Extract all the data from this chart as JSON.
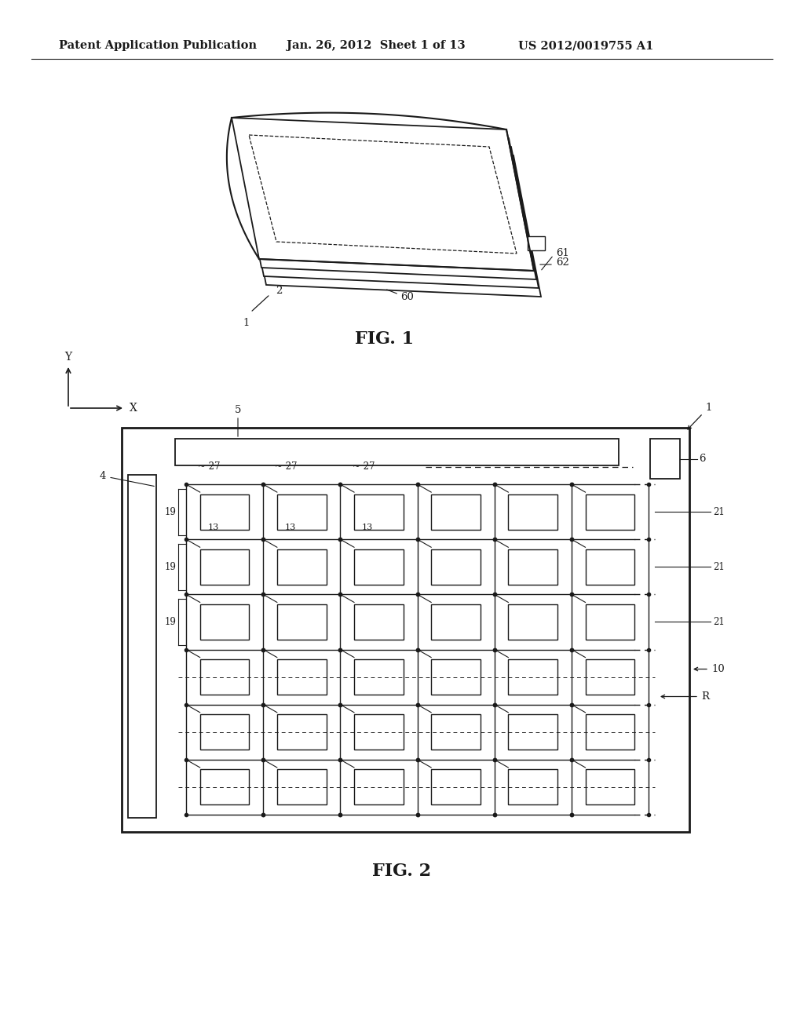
{
  "bg_color": "#ffffff",
  "line_color": "#1a1a1a",
  "header_text1": "Patent Application Publication",
  "header_text2": "Jan. 26, 2012  Sheet 1 of 13",
  "header_text3": "US 2012/0019755 A1",
  "fig1_caption": "FIG. 1",
  "fig2_caption": "FIG. 2"
}
